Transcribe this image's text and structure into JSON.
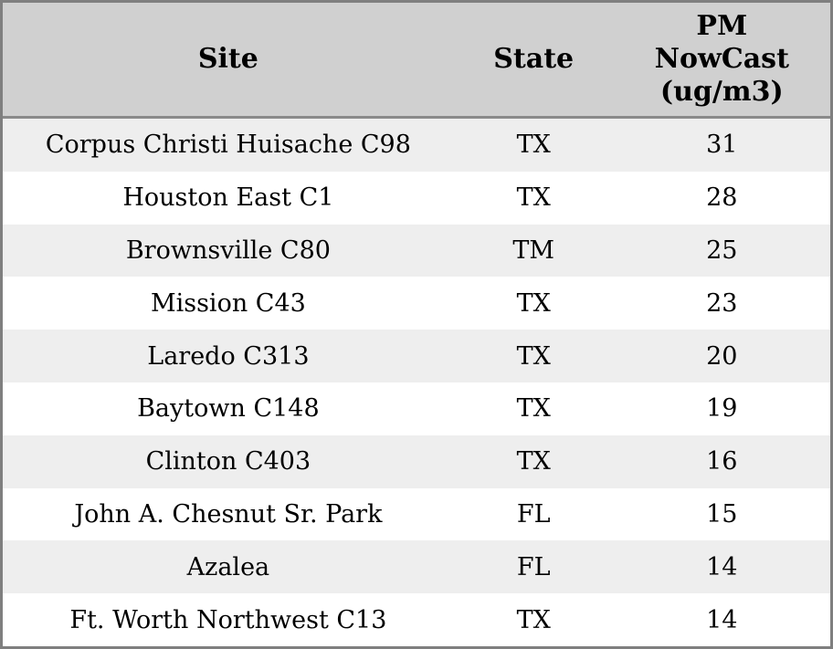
{
  "chart_data": {
    "type": "table",
    "title": "",
    "columns": [
      "Site",
      "State",
      "PM NowCast (ug/m3)"
    ],
    "rows": [
      [
        "Corpus Christi Huisache C98",
        "TX",
        31
      ],
      [
        "Houston East C1",
        "TX",
        28
      ],
      [
        "Brownsville C80",
        "TM",
        25
      ],
      [
        "Mission C43",
        "TX",
        23
      ],
      [
        "Laredo C313",
        "TX",
        20
      ],
      [
        "Baytown C148",
        "TX",
        19
      ],
      [
        "Clinton C403",
        "TX",
        16
      ],
      [
        "John A. Chesnut Sr. Park",
        "FL",
        15
      ],
      [
        "Azalea",
        "FL",
        14
      ],
      [
        "Ft. Worth Northwest C13",
        "TX",
        14
      ]
    ],
    "layout": {
      "zebra_striping": true,
      "header_position": "top",
      "cell_alignment": "center"
    }
  },
  "colors": {
    "header_bg": "#d0d0d0",
    "row_alt_bg": "#eeeeee",
    "row_bg": "#ffffff",
    "outer_border": "#7f7f7f",
    "header_divider": "#8a8a8a",
    "text": "#000000"
  }
}
